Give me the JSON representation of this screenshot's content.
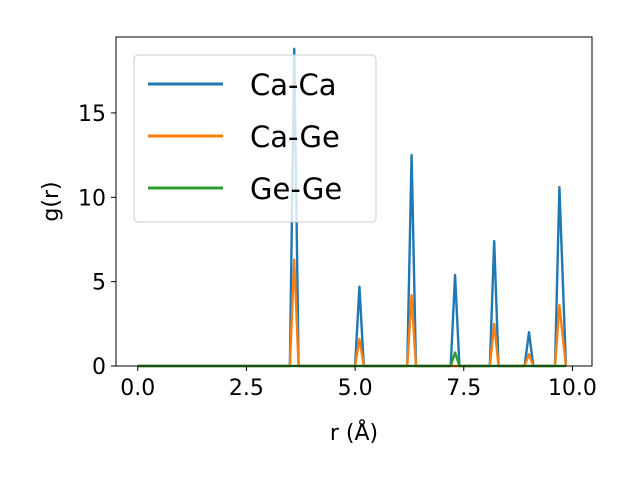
{
  "chart_data": {
    "type": "line",
    "title": "",
    "xlabel": "r (Å)",
    "ylabel": "g(r)",
    "xlim": [
      -0.5,
      10.45
    ],
    "ylim": [
      0,
      19.5
    ],
    "xticks": [
      0.0,
      2.5,
      5.0,
      7.5,
      10.0
    ],
    "xtick_labels": [
      "0.0",
      "2.5",
      "5.0",
      "7.5",
      "10.0"
    ],
    "yticks": [
      0,
      5,
      10,
      15
    ],
    "ytick_labels": [
      "0",
      "5",
      "10",
      "15"
    ],
    "grid": false,
    "legend_position": "upper-left",
    "series": [
      {
        "name": "Ca-Ca",
        "color": "#1f77b4",
        "points": [
          [
            0,
            0
          ],
          [
            3.5,
            0
          ],
          [
            3.6,
            18.8
          ],
          [
            3.7,
            0
          ],
          [
            5.0,
            0
          ],
          [
            5.1,
            4.7
          ],
          [
            5.2,
            0
          ],
          [
            6.2,
            0
          ],
          [
            6.3,
            12.5
          ],
          [
            6.4,
            0
          ],
          [
            7.2,
            0
          ],
          [
            7.3,
            5.4
          ],
          [
            7.4,
            0
          ],
          [
            8.1,
            0
          ],
          [
            8.2,
            7.4
          ],
          [
            8.3,
            0
          ],
          [
            8.9,
            0
          ],
          [
            9.0,
            2.0
          ],
          [
            9.1,
            0
          ],
          [
            9.6,
            0
          ],
          [
            9.7,
            10.6
          ],
          [
            9.85,
            0
          ]
        ]
      },
      {
        "name": "Ca-Ge",
        "color": "#ff7f0e",
        "points": [
          [
            0,
            0
          ],
          [
            3.5,
            0
          ],
          [
            3.6,
            6.3
          ],
          [
            3.7,
            0
          ],
          [
            5.0,
            0
          ],
          [
            5.1,
            1.6
          ],
          [
            5.2,
            0
          ],
          [
            6.2,
            0
          ],
          [
            6.3,
            4.2
          ],
          [
            6.4,
            0
          ],
          [
            8.1,
            0
          ],
          [
            8.2,
            2.5
          ],
          [
            8.3,
            0
          ],
          [
            8.9,
            0
          ],
          [
            9.0,
            0.7
          ],
          [
            9.1,
            0
          ],
          [
            9.6,
            0
          ],
          [
            9.7,
            3.6
          ],
          [
            9.85,
            0
          ]
        ]
      },
      {
        "name": "Ge-Ge",
        "color": "#2ca02c",
        "points": [
          [
            0,
            0
          ],
          [
            7.2,
            0
          ],
          [
            7.3,
            0.8
          ],
          [
            7.4,
            0
          ],
          [
            9.85,
            0
          ]
        ]
      }
    ]
  }
}
